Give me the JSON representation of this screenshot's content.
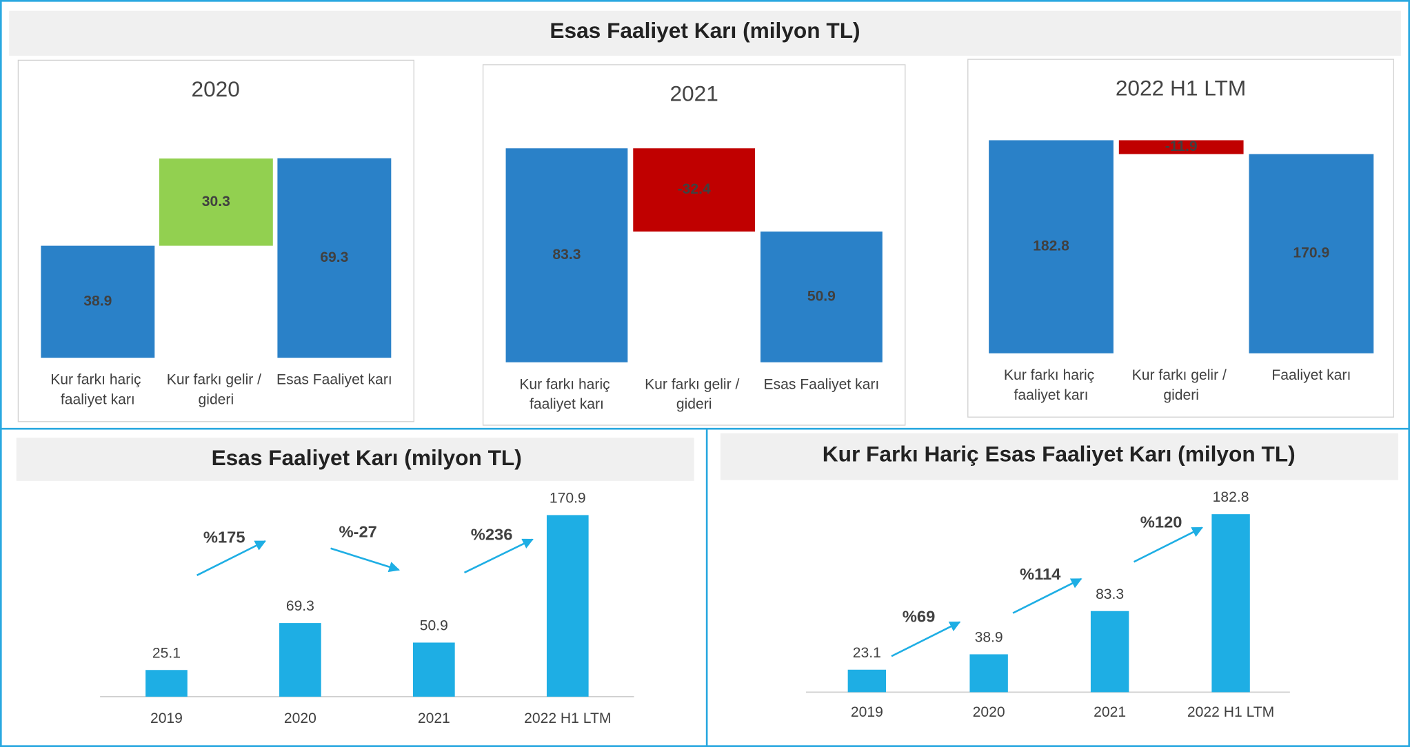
{
  "title": "Esas Faaliyet Karı (milyon TL)",
  "chart_data": [
    {
      "type": "waterfall",
      "title": "2020",
      "categories": [
        "Kur farkı hariç faaliyet karı",
        "Kur farkı gelir / gideri",
        "Esas Faaliyet karı"
      ],
      "values": [
        38.9,
        30.3,
        69.3
      ],
      "colors": [
        "#2a81c8",
        "#92d050",
        "#2a81c8"
      ]
    },
    {
      "type": "waterfall",
      "title": "2021",
      "categories": [
        "Kur farkı hariç faaliyet karı",
        "Kur farkı gelir / gideri",
        "Esas Faaliyet karı"
      ],
      "values": [
        83.3,
        -32.4,
        50.9
      ],
      "colors": [
        "#2a81c8",
        "#c00000",
        "#2a81c8"
      ]
    },
    {
      "type": "waterfall",
      "title": "2022 H1 LTM",
      "categories": [
        "Kur farkı hariç faaliyet karı",
        "Kur farkı gelir / gideri",
        "Faaliyet karı"
      ],
      "values": [
        182.8,
        -11.9,
        170.9
      ],
      "colors": [
        "#2a81c8",
        "#c00000",
        "#2a81c8"
      ]
    },
    {
      "type": "bar",
      "title": "Esas Faaliyet Karı (milyon TL)",
      "categories": [
        "2019",
        "2020",
        "2021",
        "2022 H1 LTM"
      ],
      "values": [
        25.1,
        69.3,
        50.9,
        170.9
      ],
      "color": "#1eaee4",
      "annotations": [
        "%175",
        "%-27",
        "%236"
      ]
    },
    {
      "type": "bar",
      "title": "Kur Farkı Hariç Esas Faaliyet Karı (milyon TL)",
      "categories": [
        "2019",
        "2020",
        "2021",
        "2022 H1 LTM"
      ],
      "values": [
        23.1,
        38.9,
        83.3,
        182.8
      ],
      "color": "#1eaee4",
      "annotations": [
        "%69",
        "%114",
        "%120"
      ]
    }
  ]
}
